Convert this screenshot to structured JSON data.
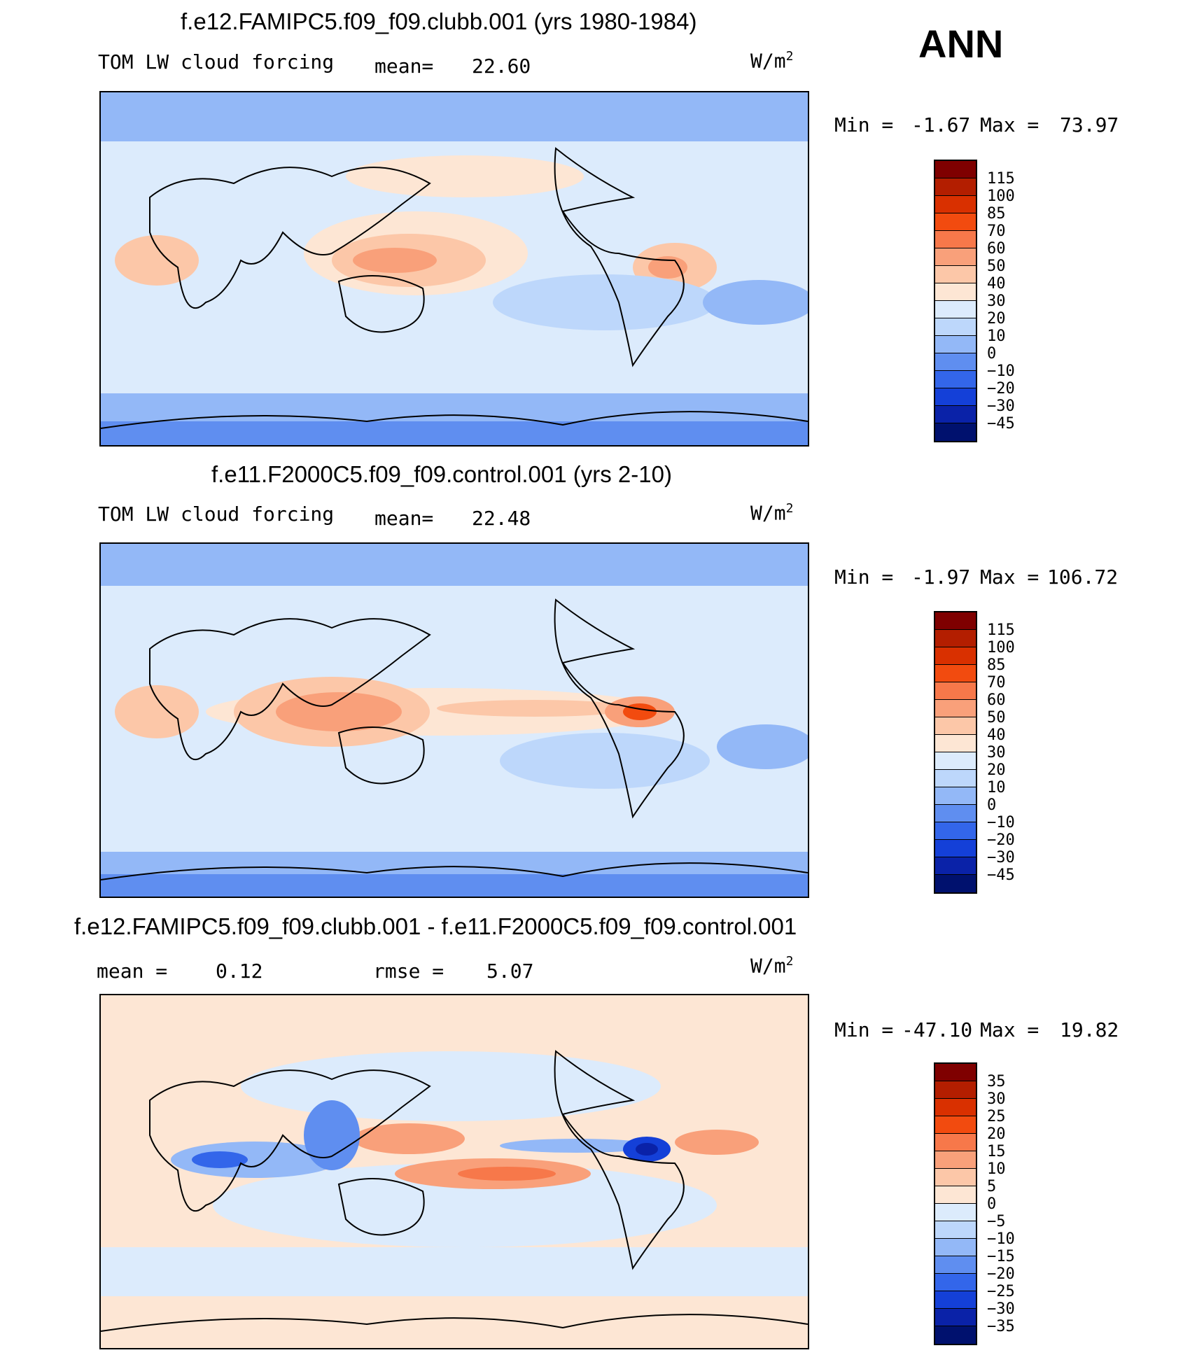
{
  "season": "ANN",
  "units": "W/m",
  "units_sup": "2",
  "panels": [
    {
      "title": "f.e12.FAMIPC5.f09_f09.clubb.001 (yrs 1980-1984)",
      "variable": "TOM LW cloud forcing",
      "mean_label": "mean=",
      "mean_value": "22.60",
      "min_label": "Min =",
      "min_value": "-1.67",
      "max_label": "Max =",
      "max_value": "73.97"
    },
    {
      "title": "f.e11.F2000C5.f09_f09.control.001 (yrs 2-10)",
      "variable": "TOM LW cloud forcing",
      "mean_label": "mean=",
      "mean_value": "22.48",
      "min_label": "Min =",
      "min_value": "-1.97",
      "max_label": "Max =",
      "max_value": "106.72"
    },
    {
      "title": "f.e12.FAMIPC5.f09_f09.clubb.001 - f.e11.F2000C5.f09_f09.control.001",
      "mean_label": "mean =",
      "mean_value": "0.12",
      "rmse_label": "rmse =",
      "rmse_value": "5.07",
      "min_label": "Min =",
      "min_value": "-47.10",
      "max_label": "Max =",
      "max_value": "19.82"
    }
  ],
  "chart_data": [
    {
      "type": "heatmap",
      "title": "f.e12.FAMIPC5.f09_f09.clubb.001 (yrs 1980-1984)",
      "variable": "TOM LW cloud forcing",
      "units": "W/m2",
      "mean": 22.6,
      "min": -1.67,
      "max": 73.97,
      "levels": [
        115,
        100,
        85,
        70,
        60,
        50,
        40,
        30,
        20,
        10,
        0,
        -10,
        -20,
        -30,
        -45
      ],
      "colors": [
        "#7f0000",
        "#b31e00",
        "#d93000",
        "#f24b0f",
        "#f7784a",
        "#f9a07a",
        "#fcc7a8",
        "#fde6d4",
        "#dcebfc",
        "#bdd7fb",
        "#93b8f7",
        "#5f8ef0",
        "#3366ea",
        "#1440d8",
        "#0a22a8",
        "#00116e"
      ]
    },
    {
      "type": "heatmap",
      "title": "f.e11.F2000C5.f09_f09.control.001 (yrs 2-10)",
      "variable": "TOM LW cloud forcing",
      "units": "W/m2",
      "mean": 22.48,
      "min": -1.97,
      "max": 106.72,
      "levels": [
        115,
        100,
        85,
        70,
        60,
        50,
        40,
        30,
        20,
        10,
        0,
        -10,
        -20,
        -30,
        -45
      ],
      "colors": [
        "#7f0000",
        "#b31e00",
        "#d93000",
        "#f24b0f",
        "#f7784a",
        "#f9a07a",
        "#fcc7a8",
        "#fde6d4",
        "#dcebfc",
        "#bdd7fb",
        "#93b8f7",
        "#5f8ef0",
        "#3366ea",
        "#1440d8",
        "#0a22a8",
        "#00116e"
      ]
    },
    {
      "type": "heatmap",
      "title": "f.e12.FAMIPC5.f09_f09.clubb.001 - f.e11.F2000C5.f09_f09.control.001",
      "units": "W/m2",
      "mean": 0.12,
      "rmse": 5.07,
      "min": -47.1,
      "max": 19.82,
      "levels": [
        35,
        30,
        25,
        20,
        15,
        10,
        5,
        0,
        -5,
        -10,
        -15,
        -20,
        -25,
        -30,
        -35
      ],
      "colors": [
        "#7f0000",
        "#b31e00",
        "#d93000",
        "#f24b0f",
        "#f7784a",
        "#f9a07a",
        "#fcc7a8",
        "#fde6d4",
        "#dcebfc",
        "#bdd7fb",
        "#93b8f7",
        "#5f8ef0",
        "#3366ea",
        "#1440d8",
        "#0a22a8",
        "#00116e"
      ]
    }
  ]
}
